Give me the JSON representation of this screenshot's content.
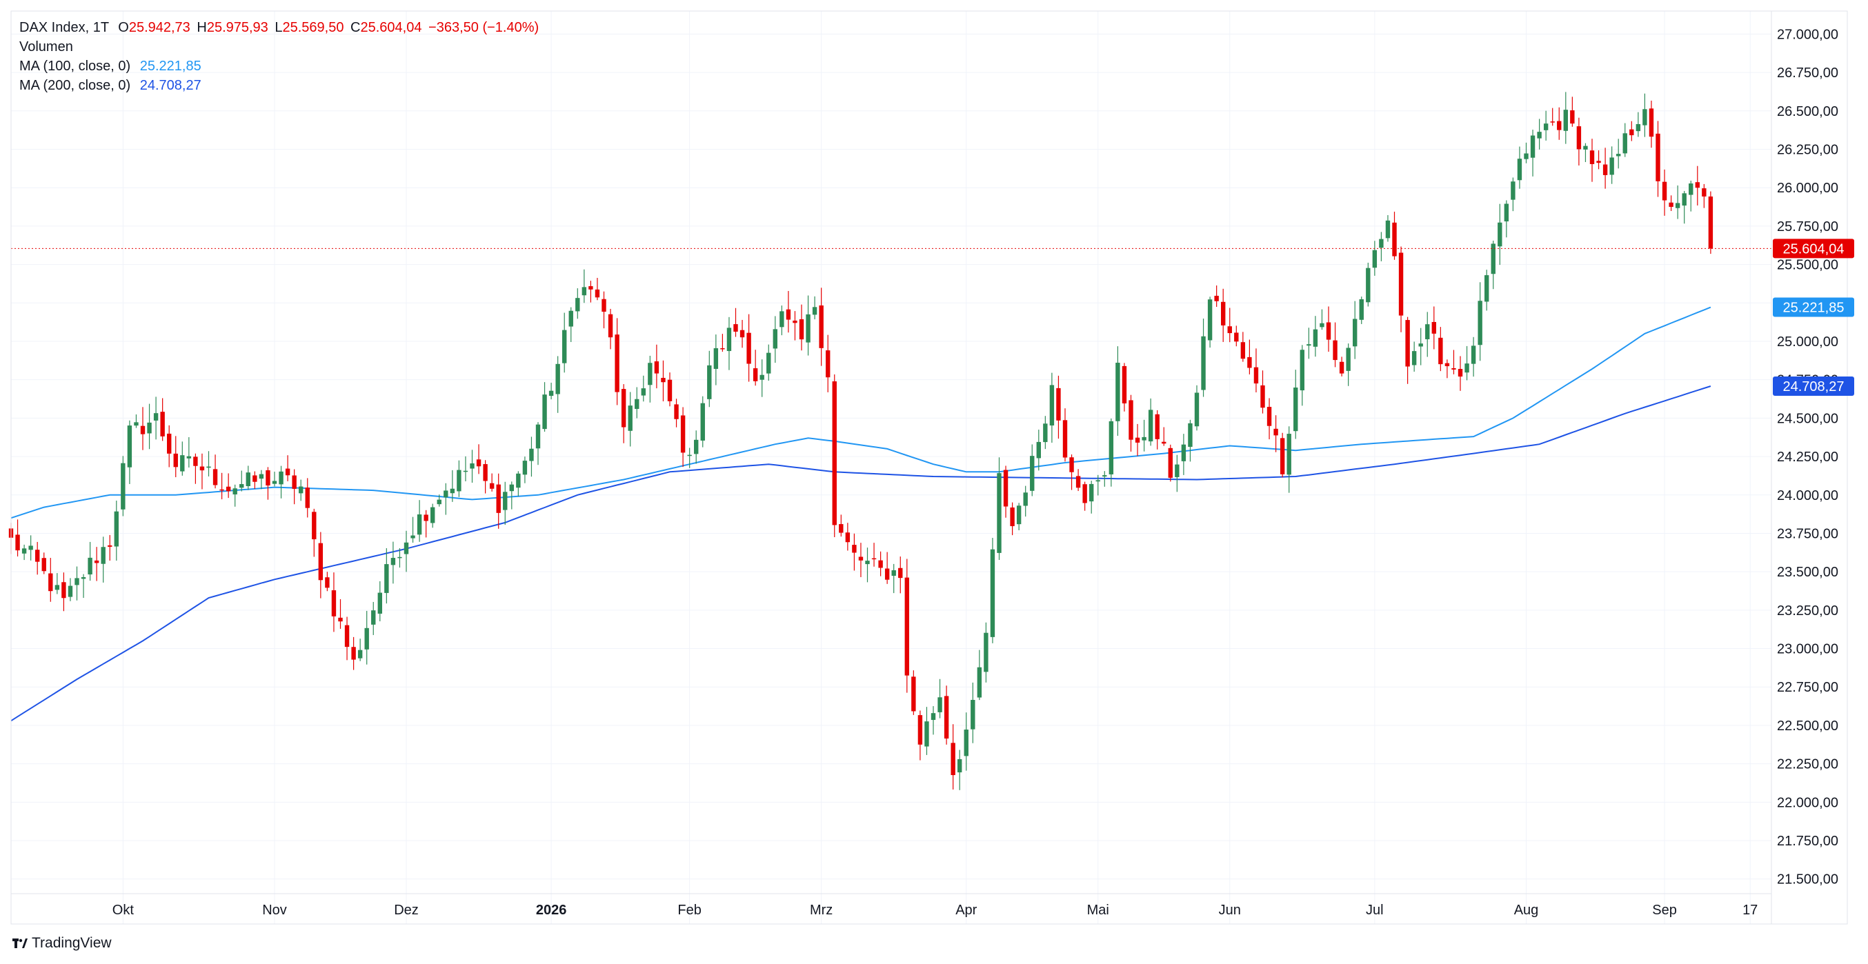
{
  "header": {
    "symbol": "DAX Index, 1T",
    "open_label": "O",
    "open": "25.942,73",
    "high_label": "H",
    "high": "25.975,93",
    "low_label": "L",
    "low": "25.569,50",
    "close_label": "C",
    "close": "25.604,04",
    "change": "−363,50 (−1.40%)",
    "volume_label": "Volumen",
    "ma100_label": "MA (100, close, 0)",
    "ma100_value": "25.221,85",
    "ma200_label": "MA (200, close, 0)",
    "ma200_value": "24.708,27"
  },
  "brand": {
    "name": "TradingView",
    "icon": "tradingview-logo-icon"
  },
  "colors": {
    "up": "#2e8b57",
    "down": "#e60000",
    "ma100": "#2196f3",
    "ma200": "#1e53e5",
    "grid": "#f0f3fa",
    "pricebar": "#e60000"
  },
  "chart_data": {
    "type": "candlestick",
    "y_axis": {
      "range": [
        21400,
        27150
      ],
      "ticks": [
        21500,
        21750,
        22000,
        22250,
        22500,
        22750,
        23000,
        23250,
        23500,
        23750,
        24000,
        24250,
        24500,
        24750,
        25000,
        25250,
        25500,
        25750,
        26000,
        26250,
        26500,
        26750,
        27000
      ],
      "tick_labels": [
        "21.500,00",
        "21.750,00",
        "22.000,00",
        "22.250,00",
        "22.500,00",
        "22.750,00",
        "23.000,00",
        "23.250,00",
        "23.500,00",
        "23.750,00",
        "24.000,00",
        "24.250,00",
        "24.500,00",
        "24.750,00",
        "25.000,00",
        "25.250,00",
        "25.500,00",
        "25.750,00",
        "26.000,00",
        "26.250,00",
        "26.500,00",
        "26.750,00",
        "27.000,00"
      ]
    },
    "x_axis": {
      "labels": [
        {
          "label": "Okt",
          "idx": 17,
          "bold": false
        },
        {
          "label": "Nov",
          "idx": 40,
          "bold": false
        },
        {
          "label": "Dez",
          "idx": 60,
          "bold": false
        },
        {
          "label": "2026",
          "idx": 82,
          "bold": true
        },
        {
          "label": "Feb",
          "idx": 103,
          "bold": false
        },
        {
          "label": "Mrz",
          "idx": 123,
          "bold": false
        },
        {
          "label": "Apr",
          "idx": 145,
          "bold": false
        },
        {
          "label": "Mai",
          "idx": 165,
          "bold": false
        },
        {
          "label": "Jun",
          "idx": 185,
          "bold": false
        },
        {
          "label": "Jul",
          "idx": 207,
          "bold": false
        },
        {
          "label": "Aug",
          "idx": 230,
          "bold": false
        },
        {
          "label": "Sep",
          "idx": 251,
          "bold": false
        },
        {
          "label": "17",
          "idx": 264,
          "bold": false
        }
      ]
    },
    "last_price": {
      "value": 25604.04,
      "label": "25.604,04"
    },
    "ma100_tag": {
      "value": 25221.85,
      "label": "25.221,85"
    },
    "ma200_tag": {
      "value": 24708.27,
      "label": "24.708,27"
    },
    "price_anchors": [
      [
        0,
        23700
      ],
      [
        3,
        23600
      ],
      [
        8,
        23300
      ],
      [
        12,
        23550
      ],
      [
        15,
        23700
      ],
      [
        18,
        24400
      ],
      [
        22,
        24500
      ],
      [
        25,
        24200
      ],
      [
        28,
        24200
      ],
      [
        33,
        24050
      ],
      [
        38,
        24100
      ],
      [
        41,
        24100
      ],
      [
        44,
        24050
      ],
      [
        47,
        23500
      ],
      [
        50,
        23150
      ],
      [
        52,
        22900
      ],
      [
        54,
        23150
      ],
      [
        58,
        23600
      ],
      [
        62,
        23850
      ],
      [
        65,
        24000
      ],
      [
        70,
        24200
      ],
      [
        74,
        23950
      ],
      [
        78,
        24200
      ],
      [
        83,
        24850
      ],
      [
        86,
        25350
      ],
      [
        89,
        25300
      ],
      [
        91,
        25000
      ],
      [
        93,
        24400
      ],
      [
        97,
        24850
      ],
      [
        100,
        24600
      ],
      [
        103,
        24200
      ],
      [
        106,
        24850
      ],
      [
        110,
        25100
      ],
      [
        113,
        24750
      ],
      [
        117,
        25150
      ],
      [
        120,
        25000
      ],
      [
        122,
        25250
      ],
      [
        124,
        24800
      ],
      [
        125,
        23800
      ],
      [
        128,
        23600
      ],
      [
        132,
        23500
      ],
      [
        135,
        23500
      ],
      [
        136,
        22800
      ],
      [
        138,
        22400
      ],
      [
        141,
        22700
      ],
      [
        143,
        22200
      ],
      [
        146,
        22600
      ],
      [
        148,
        23100
      ],
      [
        150,
        24100
      ],
      [
        152,
        23800
      ],
      [
        155,
        24200
      ],
      [
        158,
        24700
      ],
      [
        160,
        24300
      ],
      [
        163,
        24000
      ],
      [
        166,
        24100
      ],
      [
        168,
        24900
      ],
      [
        170,
        24300
      ],
      [
        173,
        24500
      ],
      [
        176,
        24150
      ],
      [
        179,
        24400
      ],
      [
        182,
        25300
      ],
      [
        185,
        25050
      ],
      [
        188,
        24800
      ],
      [
        191,
        24500
      ],
      [
        193,
        24200
      ],
      [
        196,
        24950
      ],
      [
        199,
        25100
      ],
      [
        202,
        24800
      ],
      [
        205,
        25300
      ],
      [
        208,
        25650
      ],
      [
        209,
        25800
      ],
      [
        212,
        24900
      ],
      [
        215,
        25050
      ],
      [
        218,
        24850
      ],
      [
        221,
        24800
      ],
      [
        224,
        25400
      ],
      [
        227,
        25900
      ],
      [
        230,
        26250
      ],
      [
        233,
        26400
      ],
      [
        236,
        26450
      ],
      [
        239,
        26250
      ],
      [
        242,
        26050
      ],
      [
        245,
        26300
      ],
      [
        248,
        26550
      ],
      [
        250,
        26000
      ],
      [
        253,
        25850
      ],
      [
        255,
        26000
      ],
      [
        257,
        25942.73
      ],
      [
        258,
        25604.04
      ]
    ],
    "ma100_anchors": [
      [
        0,
        23850
      ],
      [
        5,
        23920
      ],
      [
        15,
        24000
      ],
      [
        25,
        24000
      ],
      [
        40,
        24050
      ],
      [
        55,
        24030
      ],
      [
        70,
        23970
      ],
      [
        80,
        24000
      ],
      [
        93,
        24100
      ],
      [
        108,
        24250
      ],
      [
        116,
        24330
      ],
      [
        121,
        24370
      ],
      [
        125,
        24350
      ],
      [
        133,
        24300
      ],
      [
        140,
        24200
      ],
      [
        145,
        24150
      ],
      [
        150,
        24150
      ],
      [
        160,
        24210
      ],
      [
        175,
        24270
      ],
      [
        185,
        24320
      ],
      [
        195,
        24290
      ],
      [
        205,
        24330
      ],
      [
        215,
        24360
      ],
      [
        222,
        24380
      ],
      [
        228,
        24500
      ],
      [
        240,
        24820
      ],
      [
        248,
        25050
      ],
      [
        258,
        25221.85
      ]
    ],
    "ma200_anchors": [
      [
        0,
        22530
      ],
      [
        10,
        22800
      ],
      [
        20,
        23050
      ],
      [
        30,
        23330
      ],
      [
        40,
        23450
      ],
      [
        50,
        23550
      ],
      [
        60,
        23650
      ],
      [
        75,
        23820
      ],
      [
        86,
        24000
      ],
      [
        100,
        24150
      ],
      [
        115,
        24200
      ],
      [
        125,
        24150
      ],
      [
        140,
        24120
      ],
      [
        160,
        24110
      ],
      [
        180,
        24100
      ],
      [
        195,
        24120
      ],
      [
        210,
        24200
      ],
      [
        222,
        24270
      ],
      [
        232,
        24330
      ],
      [
        245,
        24530
      ],
      [
        258,
        24708.27
      ]
    ],
    "ohlc_last": {
      "open": 25942.73,
      "high": 25975.93,
      "low": 25569.5,
      "close": 25604.04,
      "change": -363.5,
      "change_pct": -1.4
    }
  }
}
